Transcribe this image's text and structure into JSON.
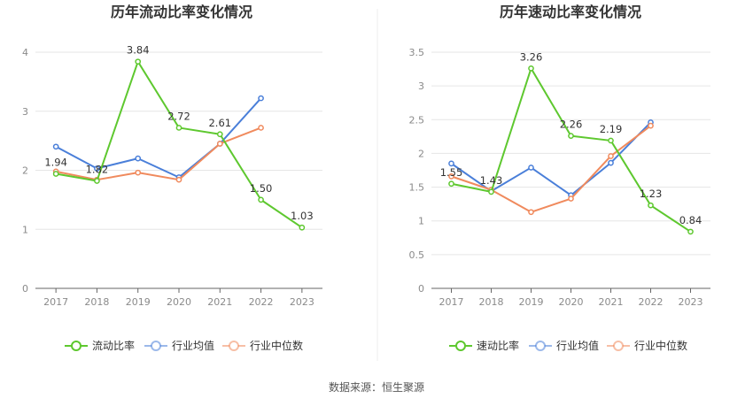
{
  "source_text": "数据来源：恒生聚源",
  "colors": {
    "main": "#5ec82f",
    "avg": "#4a7fd9",
    "median": "#f08a5d",
    "grid": "#e6e6e6",
    "axis": "#666666"
  },
  "chart_data": [
    {
      "type": "line",
      "title": "历年流动比率变化情况",
      "categories": [
        "2017",
        "2018",
        "2019",
        "2020",
        "2021",
        "2022",
        "2023"
      ],
      "ylim": [
        0,
        4
      ],
      "yticks": [
        "0",
        "1",
        "2",
        "3",
        "4"
      ],
      "grid": true,
      "legend_position": "bottom",
      "series": [
        {
          "name": "流动比率",
          "color_key": "main",
          "values": [
            1.94,
            1.82,
            3.84,
            2.72,
            2.61,
            1.5,
            1.03
          ],
          "labels": [
            "1.94",
            "1.82",
            "3.84",
            "2.72",
            "2.61",
            "1.50",
            "1.03"
          ]
        },
        {
          "name": "行业均值",
          "color_key": "avg",
          "values": [
            2.4,
            2.03,
            2.2,
            1.88,
            2.45,
            3.22,
            null
          ]
        },
        {
          "name": "行业中位数",
          "color_key": "median",
          "values": [
            1.98,
            1.84,
            1.96,
            1.84,
            2.45,
            2.72,
            null
          ]
        }
      ]
    },
    {
      "type": "line",
      "title": "历年速动比率变化情况",
      "categories": [
        "2017",
        "2018",
        "2019",
        "2020",
        "2021",
        "2022",
        "2023"
      ],
      "ylim": [
        0,
        3.5
      ],
      "yticks": [
        "0",
        "0.5",
        "1",
        "1.5",
        "2",
        "2.5",
        "3",
        "3.5"
      ],
      "grid": true,
      "legend_position": "bottom",
      "series": [
        {
          "name": "速动比率",
          "color_key": "main",
          "values": [
            1.55,
            1.43,
            3.26,
            2.26,
            2.19,
            1.23,
            0.84
          ],
          "labels": [
            "1.55",
            "1.43",
            "3.26",
            "2.26",
            "2.19",
            "1.23",
            "0.84"
          ]
        },
        {
          "name": "行业均值",
          "color_key": "avg",
          "values": [
            1.85,
            1.44,
            1.79,
            1.38,
            1.86,
            2.46,
            null
          ]
        },
        {
          "name": "行业中位数",
          "color_key": "median",
          "values": [
            1.66,
            1.46,
            1.13,
            1.33,
            1.96,
            2.41,
            null
          ]
        }
      ]
    }
  ]
}
